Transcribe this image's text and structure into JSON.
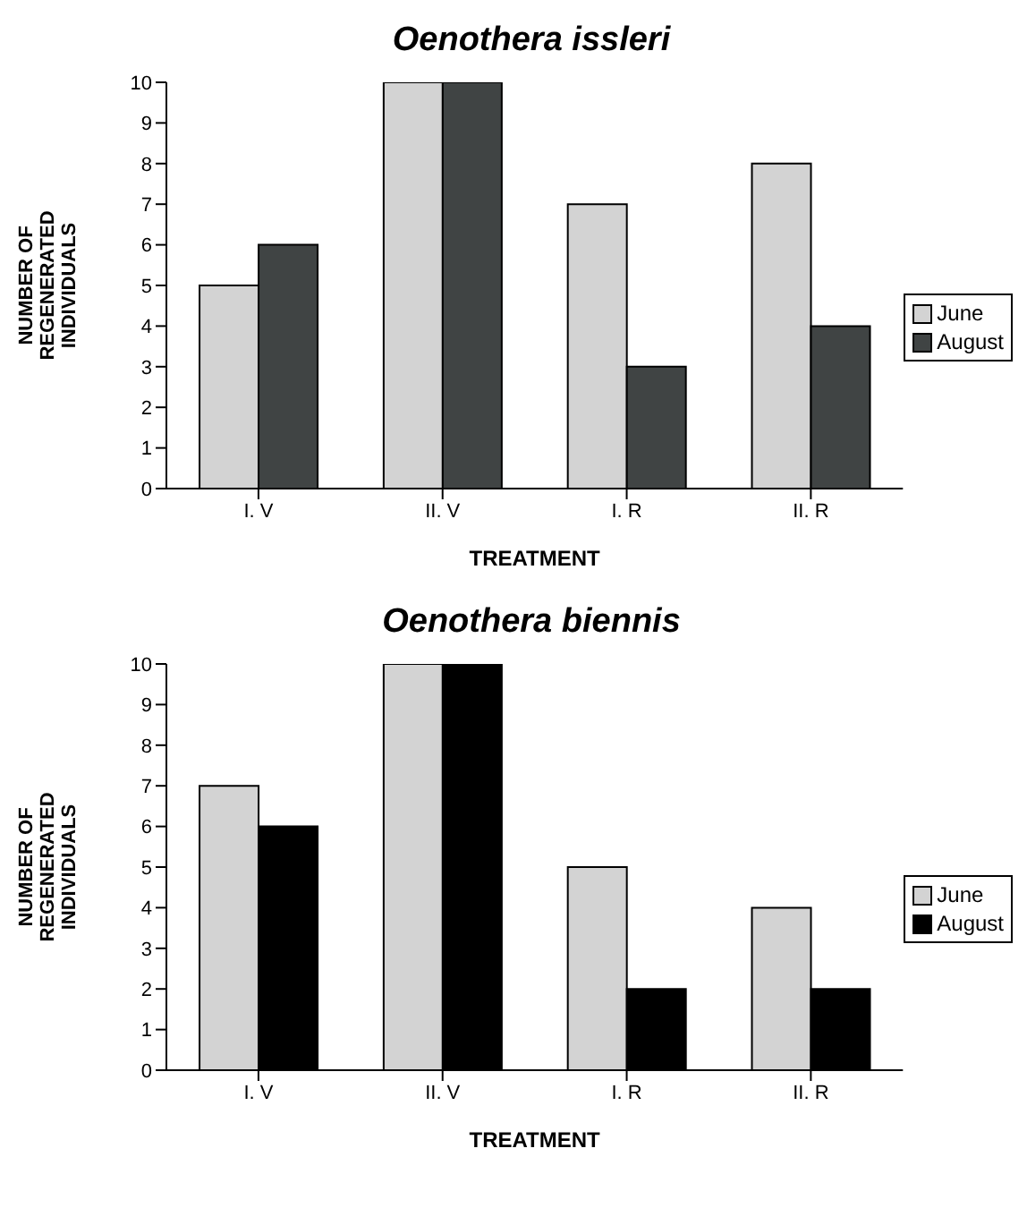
{
  "chart_data": [
    {
      "type": "bar",
      "title": "Oenothera issleri",
      "xlabel": "TREATMENT",
      "ylabel": "NUMBER OF REGENERATED INDIVIDUALS",
      "categories": [
        "I. V",
        "II. V",
        "I. R",
        "II. R"
      ],
      "series": [
        {
          "name": "June",
          "color": "#d3d3d3",
          "values": [
            5,
            10,
            7,
            8
          ]
        },
        {
          "name": "August",
          "color": "#404444",
          "values": [
            6,
            10,
            3,
            4
          ]
        }
      ],
      "ylim": [
        0,
        10
      ],
      "yticks": [
        0,
        1,
        2,
        3,
        4,
        5,
        6,
        7,
        8,
        9,
        10
      ],
      "grid": false,
      "legend": "right"
    },
    {
      "type": "bar",
      "title": "Oenothera biennis",
      "xlabel": "TREATMENT",
      "ylabel": "NUMBER OF REGENERATED INDIVIDUALS",
      "categories": [
        "I. V",
        "II. V",
        "I. R",
        "II. R"
      ],
      "series": [
        {
          "name": "June",
          "color": "#d3d3d3",
          "values": [
            7,
            10,
            5,
            4
          ]
        },
        {
          "name": "August",
          "color": "#000000",
          "values": [
            6,
            10,
            2,
            2
          ]
        }
      ],
      "ylim": [
        0,
        10
      ],
      "yticks": [
        0,
        1,
        2,
        3,
        4,
        5,
        6,
        7,
        8,
        9,
        10
      ],
      "grid": false,
      "legend": "right"
    }
  ]
}
